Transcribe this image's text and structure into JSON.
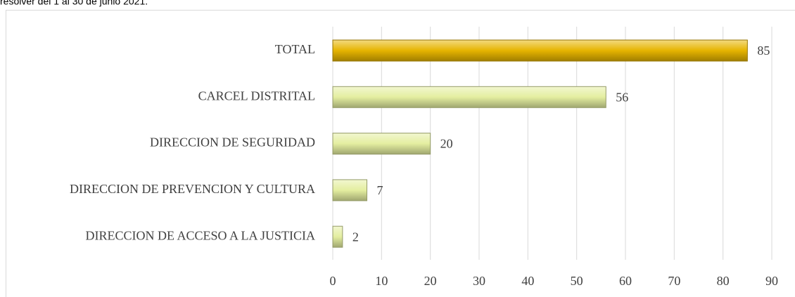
{
  "chart_data": {
    "type": "bar",
    "orientation": "horizontal",
    "subtitle": "resolver del 1 al 30 de junio 2021.",
    "categories": [
      "TOTAL",
      "CARCEL DISTRITAL",
      "DIRECCION DE SEGURIDAD",
      "DIRECCION DE PREVENCION Y CULTURA",
      "DIRECCION DE ACCESO A LA JUSTICIA"
    ],
    "values": [
      85,
      56,
      20,
      7,
      2
    ],
    "colors": [
      "#e6b400",
      "#e4eea0",
      "#e4eea0",
      "#e4eea0",
      "#e4eea0"
    ],
    "xlim": [
      0,
      90
    ],
    "xticks": [
      0,
      10,
      20,
      30,
      40,
      50,
      60,
      70,
      80,
      90
    ],
    "grid": true
  }
}
